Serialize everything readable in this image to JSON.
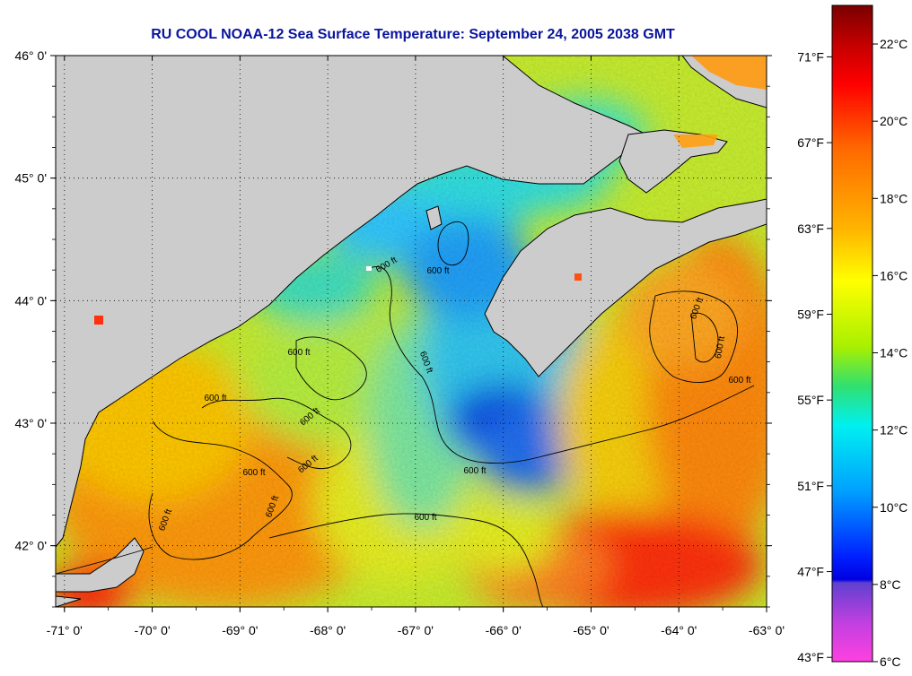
{
  "chart_data": {
    "type": "heatmap",
    "title": "RU COOL  NOAA-12  Sea Surface Temperature:  September 24, 2005 2038 GMT",
    "x_axis": {
      "range": [
        -71.1,
        -63.0
      ],
      "ticks": [
        -71,
        -70,
        -69,
        -68,
        -67,
        -66,
        -65,
        -64,
        -63
      ],
      "tick_labels": [
        "-71° 0'",
        "-70° 0'",
        "-69° 0'",
        "-68° 0'",
        "-67° 0'",
        "-66° 0'",
        "-65° 0'",
        "-64° 0'",
        "-63° 0'"
      ]
    },
    "y_axis": {
      "range": [
        41.5,
        46.0
      ],
      "ticks": [
        46,
        45,
        44,
        43,
        42
      ],
      "tick_labels": [
        "46° 0'",
        "45° 0'",
        "44° 0'",
        "43° 0'",
        "42° 0'"
      ]
    },
    "grid": true,
    "contour_label": "600 ft",
    "contour_labels_count": 15,
    "colorbar": {
      "range_c": [
        6,
        23
      ],
      "celsius_ticks": [
        22,
        20,
        18,
        16,
        14,
        12,
        10,
        8,
        6
      ],
      "celsius_labels": [
        "22°C",
        "20°C",
        "18°C",
        "16°C",
        "14°C",
        "12°C",
        "10°C",
        "8°C",
        "6°C"
      ],
      "fahrenheit_ticks": [
        71,
        67,
        63,
        59,
        55,
        51,
        47,
        43
      ],
      "fahrenheit_labels": [
        "71°F",
        "67°F",
        "63°F",
        "59°F",
        "55°F",
        "51°F",
        "47°F",
        "43°F"
      ]
    },
    "colors": {
      "land": "#cccccc",
      "grid": "#000000",
      "title": "#0a149c"
    }
  }
}
